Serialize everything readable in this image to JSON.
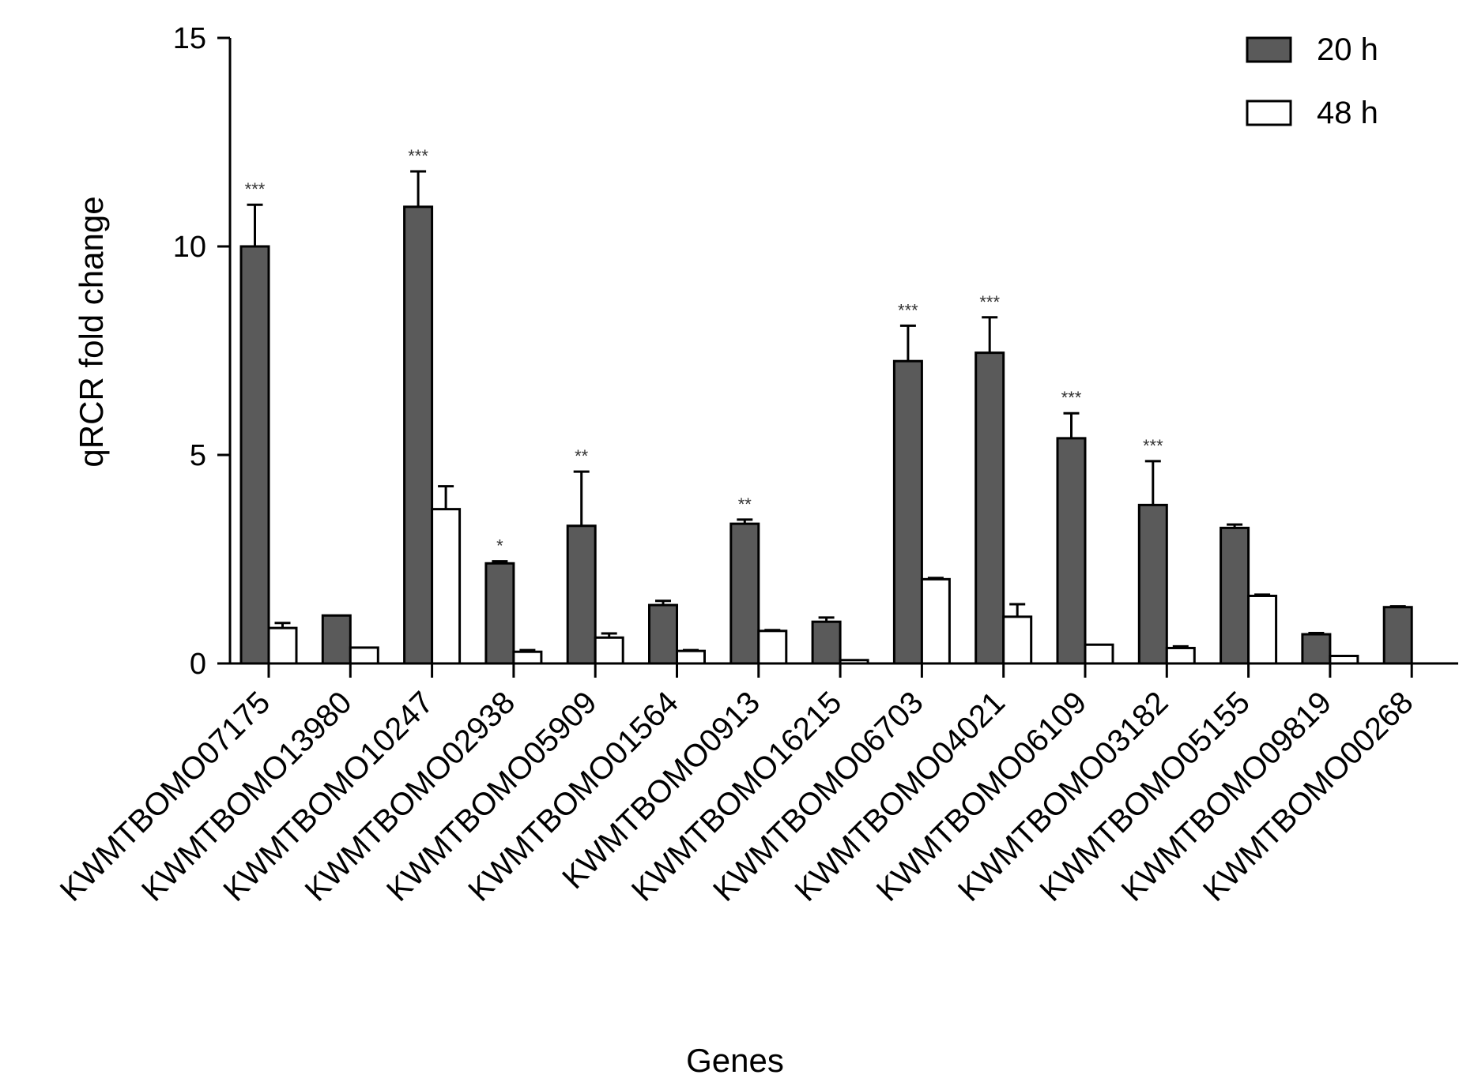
{
  "chart_data": {
    "type": "bar",
    "title": "",
    "xlabel": "Genes",
    "ylabel": "qRCR fold change",
    "ylim": [
      0,
      15
    ],
    "yticks": [
      0,
      5,
      10,
      15
    ],
    "grid": false,
    "legend_position": "top-right",
    "categories": [
      "KWMTBOMO07175",
      "KWMTBOMO13980",
      "KWMTBOMO10247",
      "KWMTBOMO02938",
      "KWMTBOMO05909",
      "KWMTBOMO01564",
      "KWMTBOMO0913",
      "KWMTBOMO16215",
      "KWMTBOMO06703",
      "KWMTBOMO04021",
      "KWMTBOMO06109",
      "KWMTBOMO03182",
      "KWMTBOMO05155",
      "KWMTBOMO09819",
      "KWMTBOMO00268"
    ],
    "series": [
      {
        "name": "20 h",
        "color": "#5a5a5a",
        "values": [
          10.0,
          1.15,
          10.95,
          2.4,
          3.3,
          1.4,
          3.35,
          1.0,
          7.25,
          7.45,
          5.4,
          3.8,
          3.25,
          0.7,
          1.35
        ],
        "errors": [
          1.0,
          0.0,
          0.85,
          0.05,
          1.3,
          0.1,
          0.1,
          0.1,
          0.85,
          0.85,
          0.6,
          1.05,
          0.08,
          0.03,
          0.02
        ]
      },
      {
        "name": "48 h",
        "color": "#ffffff",
        "values": [
          0.85,
          0.38,
          3.7,
          0.28,
          0.62,
          0.3,
          0.78,
          0.08,
          2.02,
          1.12,
          0.45,
          0.37,
          1.62,
          0.18,
          0.0
        ],
        "errors": [
          0.12,
          0.0,
          0.55,
          0.04,
          0.1,
          0.02,
          0.02,
          0.0,
          0.03,
          0.3,
          0.0,
          0.04,
          0.03,
          0.0,
          0.0
        ]
      }
    ],
    "significance": [
      "***",
      "",
      "***",
      "*",
      "**",
      "",
      "**",
      "",
      "***",
      "***",
      "***",
      "***",
      "",
      "",
      ""
    ]
  }
}
